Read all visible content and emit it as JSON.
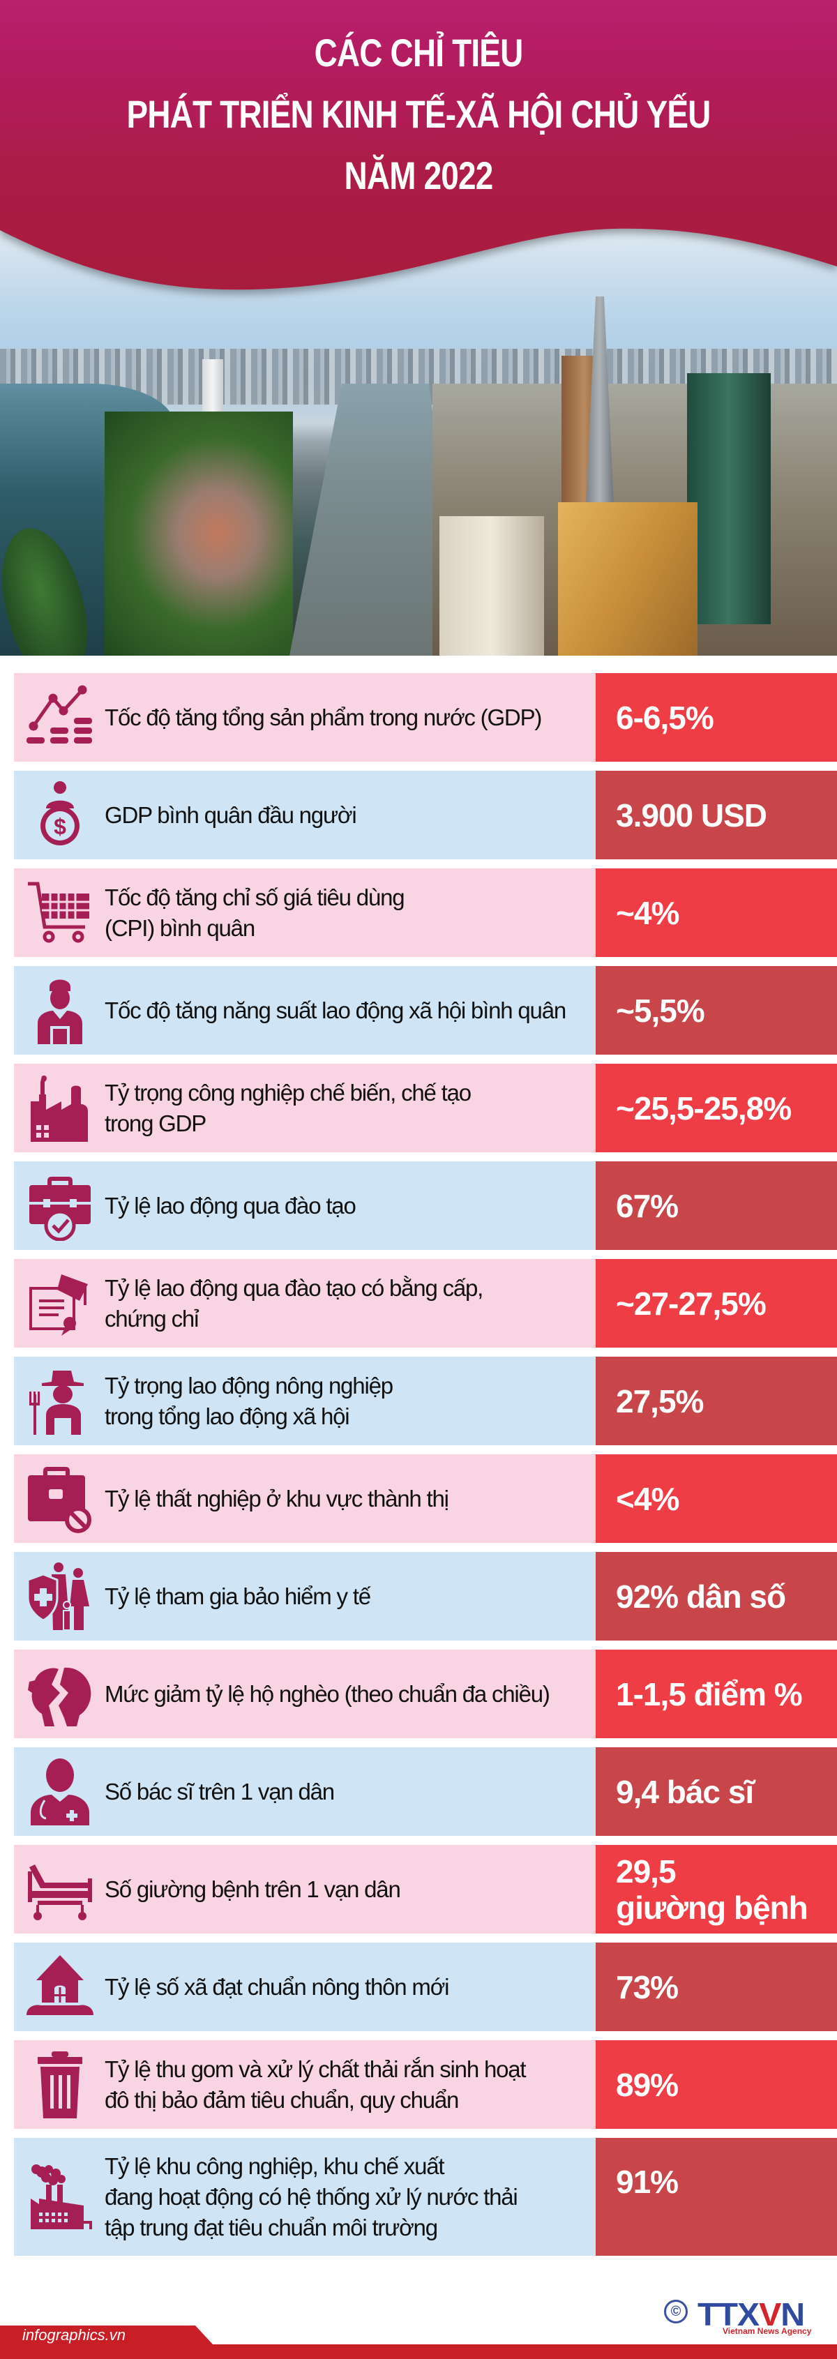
{
  "header": {
    "title_lines": [
      "CÁC CHỈ TIÊU",
      "PHÁT TRIỂN KINH TẾ-XÃ HỘI CHỦ YẾU",
      "NĂM 2022"
    ],
    "bg_color_top": "#b8206e",
    "bg_color_bottom": "#ab1c40"
  },
  "colors": {
    "row_pink": "#f9d4e2",
    "row_blue": "#cfe4f4",
    "value_bright_red": "#ee3d45",
    "value_dark_red": "#c8454a",
    "icon_color": "#a51f55"
  },
  "indicators": [
    {
      "icon": "growth-chart-icon",
      "label": "Tốc độ tăng tổng sản phẩm trong nước (GDP)",
      "value": "6-6,5%"
    },
    {
      "icon": "person-dollar-icon",
      "label": "GDP bình quân đầu người",
      "value": "3.900 USD"
    },
    {
      "icon": "shopping-cart-icon",
      "label": "Tốc độ tăng chỉ số giá tiêu dùng (CPI) bình quân",
      "value": "~4%"
    },
    {
      "icon": "worker-icon",
      "label": "Tốc độ tăng năng suất lao động xã hội bình quân",
      "value": "~5,5%"
    },
    {
      "icon": "factory-icon",
      "label": "Tỷ trọng công nghiệp chế biến, chế tạo trong GDP",
      "value": "~25,5-25,8%"
    },
    {
      "icon": "briefcase-check-icon",
      "label": "Tỷ lệ lao động qua đào tạo",
      "value": "67%"
    },
    {
      "icon": "diploma-icon",
      "label": "Tỷ lệ lao động qua đào tạo có bằng cấp, chứng chỉ",
      "value": "~27-27,5%"
    },
    {
      "icon": "farmer-icon",
      "label": "Tỷ trọng lao động nông nghiệp trong tổng lao động xã hội",
      "value": "27,5%"
    },
    {
      "icon": "briefcase-ban-icon",
      "label": "Tỷ lệ thất nghiệp ở khu vực thành thị",
      "value": "<4%"
    },
    {
      "icon": "family-shield-icon",
      "label": "Tỷ lệ tham gia bảo hiểm y tế",
      "value": "92% dân số"
    },
    {
      "icon": "broken-piggy-bank-icon",
      "label": "Mức giảm tỷ lệ hộ nghèo (theo chuẩn đa chiều)",
      "value": "1-1,5 điểm %"
    },
    {
      "icon": "doctor-icon",
      "label": "Số bác sĩ trên 1 vạn dân",
      "value": "9,4 bác sĩ"
    },
    {
      "icon": "hospital-bed-icon",
      "label": "Số giường bệnh trên 1 vạn dân",
      "value": "29,5",
      "value_line2": "giường bệnh"
    },
    {
      "icon": "rural-house-icon",
      "label": "Tỷ lệ số xã đạt chuẩn nông thôn mới",
      "value": "73%"
    },
    {
      "icon": "trash-bin-icon",
      "label": "Tỷ lệ thu gom và xử lý chất thải rắn sinh hoạt đô thị bảo đảm tiêu chuẩn, quy chuẩn",
      "value": "89%"
    },
    {
      "icon": "factory-smoke-icon",
      "label": "Tỷ lệ khu công nghiệp, khu chế xuất đang hoạt động có hệ thống xử lý nước thải tập trung đạt tiêu chuẩn môi trường",
      "value": "91%"
    }
  ],
  "label_lines": [
    [
      "Tốc độ tăng tổng sản phẩm trong nước (GDP)"
    ],
    [
      "GDP bình quân đầu người"
    ],
    [
      "Tốc độ tăng chỉ số giá tiêu dùng",
      "(CPI) bình quân"
    ],
    [
      "Tốc độ tăng năng suất lao động xã hội bình quân"
    ],
    [
      "Tỷ trọng công nghiệp chế biến, chế tạo",
      "trong GDP"
    ],
    [
      "Tỷ lệ lao động qua đào tạo"
    ],
    [
      "Tỷ lệ lao động qua đào tạo có bằng cấp,",
      "chứng chỉ"
    ],
    [
      "Tỷ trọng lao động nông nghiệp",
      "trong tổng lao động xã hội"
    ],
    [
      "Tỷ lệ thất nghiệp ở khu vực thành thị"
    ],
    [
      "Tỷ lệ tham gia bảo hiểm y tế"
    ],
    [
      "Mức giảm tỷ lệ hộ nghèo (theo chuẩn đa chiều)"
    ],
    [
      "Số bác sĩ trên 1 vạn dân"
    ],
    [
      "Số giường bệnh trên 1 vạn dân"
    ],
    [
      "Tỷ lệ số xã đạt chuẩn nông thôn mới"
    ],
    [
      "Tỷ lệ thu gom và xử lý chất thải rắn sinh hoạt",
      "đô thị bảo đảm tiêu chuẩn, quy chuẩn"
    ],
    [
      "Tỷ lệ khu công nghiệp, khu chế xuất",
      "đang hoạt động có hệ thống xử lý nước thải",
      "tập trung đạt tiêu chuẩn môi trường"
    ]
  ],
  "footer": {
    "site": "infographics.vn",
    "logo_copyright": "©",
    "logo_text_left": "TTX",
    "logo_text_v": "V",
    "logo_text_right": "N",
    "logo_tagline": "Vietnam News Agency"
  }
}
